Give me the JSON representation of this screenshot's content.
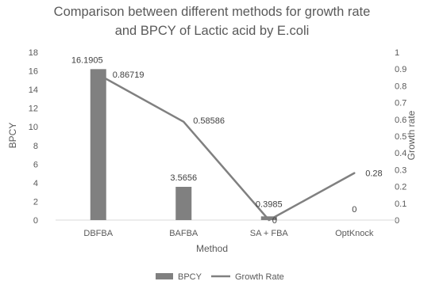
{
  "chart_data": {
    "type": "bar",
    "title_lines": [
      "Comparison between different methods for growth rate",
      "and BPCY of Lactic acid by E.coli"
    ],
    "xlabel": "Method",
    "ylabel_left": "BPCY",
    "ylabel_right": "Growth rate",
    "categories": [
      "DBFBA",
      "BAFBA",
      "SA + FBA",
      "OptKnock"
    ],
    "left_axis": {
      "ylim": [
        0,
        18
      ],
      "ticks": [
        "0",
        "2",
        "4",
        "6",
        "8",
        "10",
        "12",
        "14",
        "16",
        "18"
      ]
    },
    "right_axis": {
      "ylim": [
        0,
        1
      ],
      "ticks": [
        "0",
        "0.1",
        "0.2",
        "0.3",
        "0.4",
        "0.5",
        "0.6",
        "0.7",
        "0.8",
        "0.9",
        "1"
      ]
    },
    "grid": false,
    "legend_position": "bottom",
    "series": [
      {
        "name": "BPCY",
        "type": "bar",
        "axis": "left",
        "color": "#808080",
        "values": [
          16.1905,
          3.5656,
          0.3985,
          0
        ],
        "labels": [
          "16.1905",
          "3.5656",
          "0.3985",
          "0"
        ]
      },
      {
        "name": "Growth Rate",
        "type": "line",
        "axis": "right",
        "color": "#808080",
        "values": [
          0.86719,
          0.58586,
          0,
          0.28
        ],
        "labels": [
          "0.86719",
          "0.58586",
          "0",
          "0.28"
        ]
      }
    ]
  }
}
